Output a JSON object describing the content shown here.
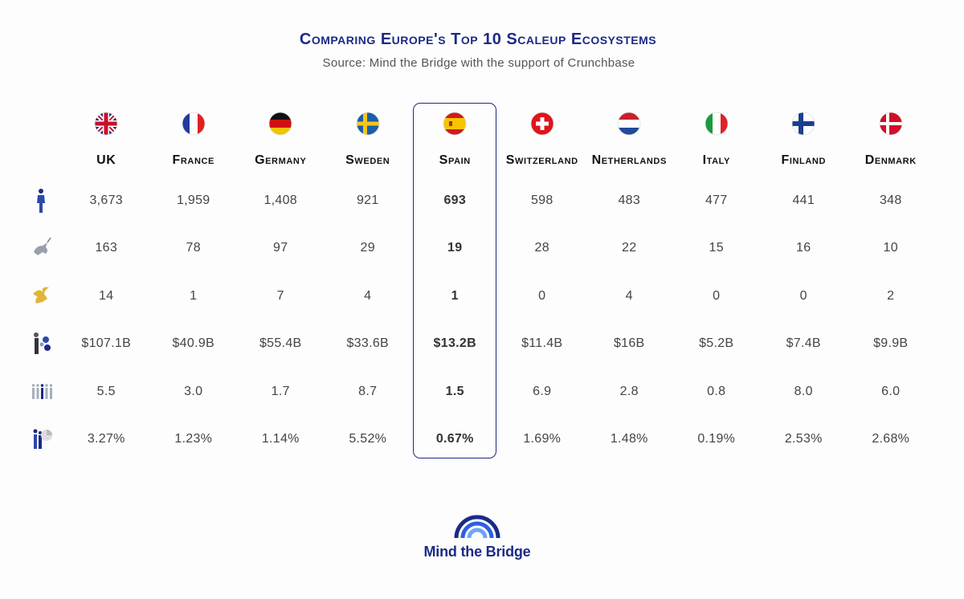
{
  "title": "Comparing Europe's Top 10 Scaleup Ecosystems",
  "subtitle": "Source: Mind the Bridge with the support of Crunchbase",
  "logo_text": "Mind the Bridge",
  "colors": {
    "accent": "#1b2a86",
    "logo_blue": "#1f3fbf"
  },
  "chart_data": {
    "type": "table",
    "title": "Comparing Europe's Top 10 Scaleup Ecosystems",
    "subtitle": "Source: Mind the Bridge with the support of Crunchbase",
    "highlighted_column": "Spain",
    "columns": [
      "UK",
      "France",
      "Germany",
      "Sweden",
      "Spain",
      "Switzerland",
      "Netherlands",
      "Italy",
      "Finland",
      "Denmark"
    ],
    "flags": [
      "flag-uk-icon",
      "flag-france-icon",
      "flag-germany-icon",
      "flag-sweden-icon",
      "flag-spain-icon",
      "flag-switzerland-icon",
      "flag-netherlands-icon",
      "flag-italy-icon",
      "flag-finland-icon",
      "flag-denmark-icon"
    ],
    "rows": [
      {
        "icon": "person-icon",
        "values": [
          "3,673",
          "1,959",
          "1,408",
          "921",
          "693",
          "598",
          "483",
          "477",
          "441",
          "348"
        ]
      },
      {
        "icon": "unicorn-icon",
        "values": [
          "163",
          "78",
          "97",
          "29",
          "19",
          "28",
          "22",
          "15",
          "16",
          "10"
        ]
      },
      {
        "icon": "winged-horse-icon",
        "values": [
          "14",
          "1",
          "7",
          "4",
          "1",
          "0",
          "4",
          "0",
          "0",
          "2"
        ]
      },
      {
        "icon": "investor-money-icon",
        "values": [
          "$107.1B",
          "$40.9B",
          "$55.4B",
          "$33.6B",
          "$13.2B",
          "$11.4B",
          "$16B",
          "$5.2B",
          "$7.4B",
          "$9.9B"
        ]
      },
      {
        "icon": "people-group-icon",
        "values": [
          "5.5",
          "3.0",
          "1.7",
          "8.7",
          "1.5",
          "6.9",
          "2.8",
          "0.8",
          "8.0",
          "6.0"
        ]
      },
      {
        "icon": "people-pie-icon",
        "values": [
          "3.27%",
          "1.23%",
          "1.14%",
          "5.52%",
          "0.67%",
          "1.69%",
          "1.48%",
          "0.19%",
          "2.53%",
          "2.68%"
        ]
      }
    ]
  }
}
